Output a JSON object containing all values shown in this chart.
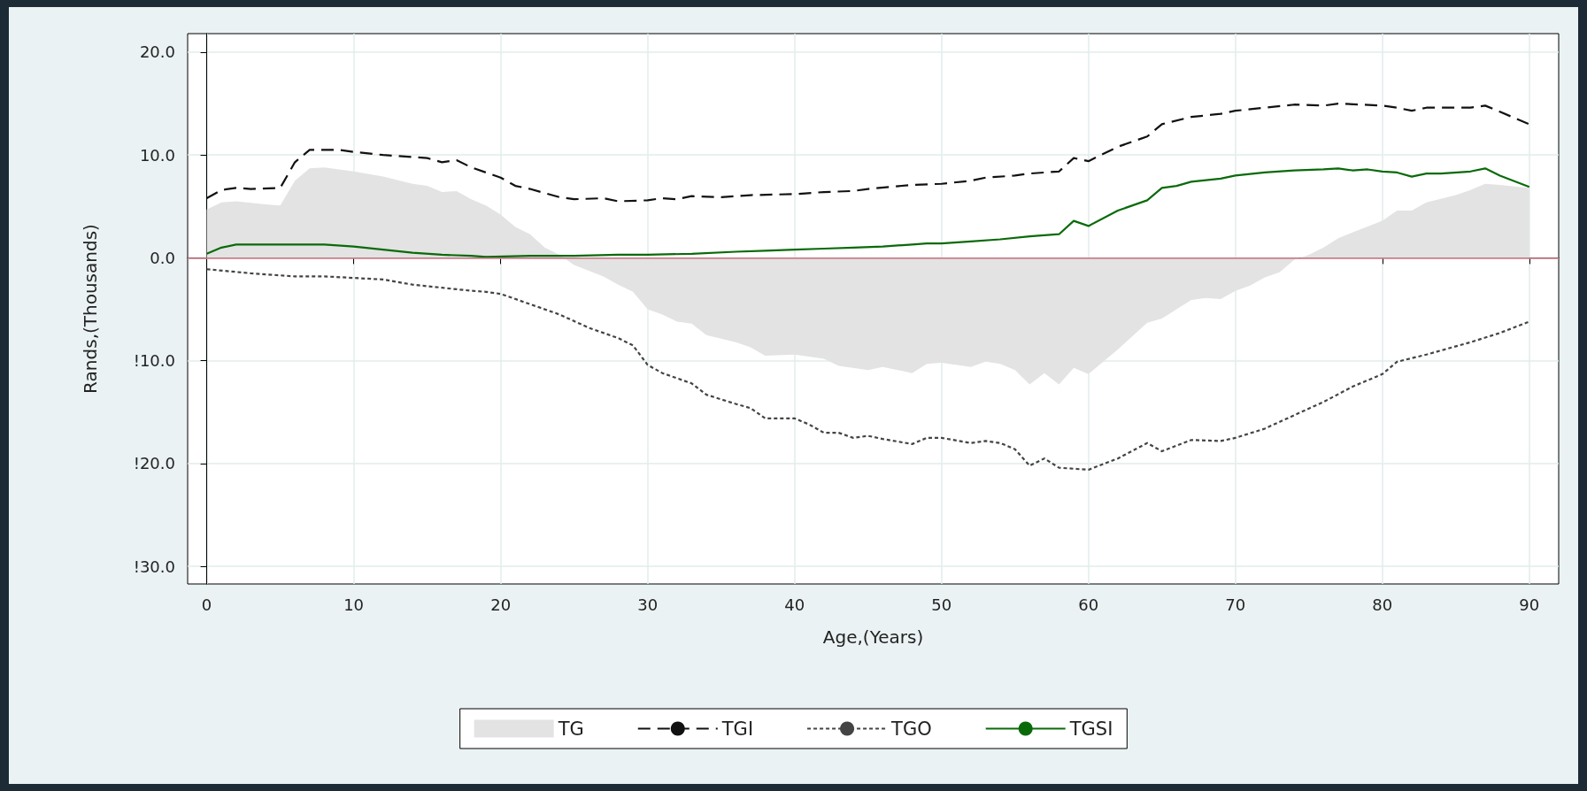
{
  "chart_data": {
    "type": "line",
    "xlabel": "Age,(Years)",
    "ylabel": "Rands,(Thousands)",
    "xlim": [
      -1.3,
      92
    ],
    "ylim": [
      -31.7,
      21.8
    ],
    "xticks": [
      0,
      10,
      20,
      30,
      40,
      50,
      60,
      70,
      80,
      90
    ],
    "yticks": [
      {
        "value": 20,
        "label": "20.0"
      },
      {
        "value": 10,
        "label": "10.0"
      },
      {
        "value": 0,
        "label": "0.0"
      },
      {
        "value": -10,
        "label": "!10.0"
      },
      {
        "value": -20,
        "label": "!20.0"
      },
      {
        "value": -30,
        "label": "!30.0"
      }
    ],
    "grid": true,
    "legend": "bottom",
    "marker": "none",
    "ref_lines": [
      {
        "axis": "y",
        "value": 0,
        "label": null,
        "color": "#d9828f"
      }
    ],
    "series": [
      {
        "name": "TG",
        "type": "area",
        "color": "#e3e3e3",
        "x": [
          0,
          1,
          2,
          4,
          5,
          6,
          7,
          8,
          10,
          12,
          14,
          15,
          16,
          17,
          18,
          19,
          20,
          21,
          22,
          23,
          24,
          25,
          27,
          28,
          29,
          30,
          31,
          32,
          33,
          34,
          36,
          37,
          38,
          40,
          42,
          43,
          45,
          46,
          48,
          49,
          50,
          52,
          53,
          54,
          55,
          56,
          57,
          58,
          59,
          60,
          62,
          64,
          65,
          67,
          68,
          69,
          70,
          71,
          72,
          73,
          74,
          75,
          76,
          77,
          78,
          80,
          81,
          82,
          83,
          85,
          86,
          87,
          88,
          90
        ],
        "values": [
          4.7,
          5.4,
          5.5,
          5.2,
          5.1,
          7.5,
          8.7,
          8.8,
          8.4,
          7.9,
          7.2,
          7.0,
          6.4,
          6.5,
          5.7,
          5.1,
          4.2,
          3.0,
          2.3,
          1.0,
          0.3,
          -0.7,
          -1.8,
          -2.6,
          -3.3,
          -5.0,
          -5.5,
          -6.2,
          -6.4,
          -7.5,
          -8.2,
          -8.7,
          -9.5,
          -9.4,
          -9.8,
          -10.5,
          -10.9,
          -10.6,
          -11.2,
          -10.3,
          -10.2,
          -10.6,
          -10.1,
          -10.3,
          -10.9,
          -12.3,
          -11.2,
          -12.3,
          -10.7,
          -11.3,
          -8.9,
          -6.3,
          -5.9,
          -4.1,
          -3.9,
          -4.0,
          -3.2,
          -2.7,
          -1.9,
          -1.4,
          -0.2,
          0.3,
          1.0,
          1.9,
          2.5,
          3.6,
          4.6,
          4.6,
          5.4,
          6.1,
          6.6,
          7.2,
          7.1,
          6.8
        ]
      },
      {
        "name": "TGI",
        "line_style": "dashed",
        "color": "#111111",
        "x": [
          0,
          1,
          2,
          3,
          5,
          6,
          7,
          9,
          10,
          12,
          14,
          15,
          16,
          17,
          18,
          20,
          21,
          22,
          24,
          25,
          27,
          28,
          30,
          31,
          32,
          33,
          35,
          37,
          40,
          42,
          44,
          45,
          48,
          50,
          52,
          53,
          55,
          56,
          58,
          59,
          60,
          62,
          64,
          65,
          67,
          69,
          70,
          72,
          74,
          76,
          77,
          80,
          81,
          82,
          83,
          86,
          87,
          88,
          90
        ],
        "values": [
          5.8,
          6.6,
          6.8,
          6.7,
          6.8,
          9.3,
          10.5,
          10.5,
          10.3,
          10.0,
          9.8,
          9.7,
          9.3,
          9.5,
          8.8,
          7.8,
          7.0,
          6.7,
          5.9,
          5.7,
          5.8,
          5.5,
          5.6,
          5.8,
          5.7,
          6.0,
          5.9,
          6.1,
          6.2,
          6.4,
          6.5,
          6.7,
          7.1,
          7.2,
          7.5,
          7.8,
          8.0,
          8.2,
          8.4,
          9.7,
          9.4,
          10.8,
          11.8,
          13.0,
          13.7,
          14.0,
          14.3,
          14.6,
          14.9,
          14.8,
          15.0,
          14.8,
          14.6,
          14.3,
          14.6,
          14.6,
          14.8,
          14.2,
          13.0
        ]
      },
      {
        "name": "TGO",
        "line_style": "dotted",
        "color": "#444444",
        "x": [
          0,
          3,
          6,
          8,
          12,
          14,
          16,
          18,
          19,
          20,
          22,
          24,
          26,
          28,
          29,
          30,
          31,
          33,
          34,
          36,
          37,
          38,
          40,
          41,
          42,
          43,
          44,
          45,
          46,
          48,
          49,
          50,
          52,
          53,
          54,
          55,
          56,
          57,
          58,
          60,
          62,
          64,
          65,
          67,
          69,
          70,
          72,
          74,
          76,
          78,
          80,
          81,
          83,
          86,
          88,
          90
        ],
        "values": [
          -1.1,
          -1.5,
          -1.8,
          -1.8,
          -2.1,
          -2.6,
          -2.9,
          -3.2,
          -3.3,
          -3.5,
          -4.5,
          -5.5,
          -6.8,
          -7.8,
          -8.5,
          -10.4,
          -11.2,
          -12.2,
          -13.3,
          -14.2,
          -14.6,
          -15.6,
          -15.6,
          -16.2,
          -17.0,
          -17.0,
          -17.5,
          -17.3,
          -17.6,
          -18.1,
          -17.5,
          -17.5,
          -18.0,
          -17.8,
          -18.0,
          -18.6,
          -20.2,
          -19.5,
          -20.4,
          -20.6,
          -19.5,
          -18.0,
          -18.8,
          -17.7,
          -17.8,
          -17.5,
          -16.6,
          -15.3,
          -14.0,
          -12.5,
          -11.3,
          -10.1,
          -9.4,
          -8.2,
          -7.3,
          -6.2
        ]
      },
      {
        "name": "TGSI",
        "line_style": "solid",
        "color": "#0a6a0a",
        "x": [
          0,
          1,
          2,
          5,
          8,
          10,
          12,
          14,
          16,
          18,
          19,
          22,
          25,
          28,
          30,
          33,
          36,
          38,
          40,
          42,
          44,
          46,
          48,
          49,
          50,
          52,
          54,
          56,
          58,
          59,
          60,
          62,
          64,
          65,
          66,
          67,
          69,
          70,
          72,
          74,
          76,
          77,
          78,
          79,
          80,
          81,
          82,
          83,
          84,
          86,
          87,
          88,
          90
        ],
        "values": [
          0.4,
          1.0,
          1.3,
          1.3,
          1.3,
          1.1,
          0.8,
          0.5,
          0.3,
          0.2,
          0.1,
          0.2,
          0.2,
          0.3,
          0.3,
          0.4,
          0.6,
          0.7,
          0.8,
          0.9,
          1.0,
          1.1,
          1.3,
          1.4,
          1.4,
          1.6,
          1.8,
          2.1,
          2.3,
          3.6,
          3.1,
          4.6,
          5.6,
          6.8,
          7.0,
          7.4,
          7.7,
          8.0,
          8.3,
          8.5,
          8.6,
          8.7,
          8.5,
          8.6,
          8.4,
          8.3,
          7.9,
          8.2,
          8.2,
          8.4,
          8.7,
          8.0,
          6.9
        ]
      }
    ]
  }
}
